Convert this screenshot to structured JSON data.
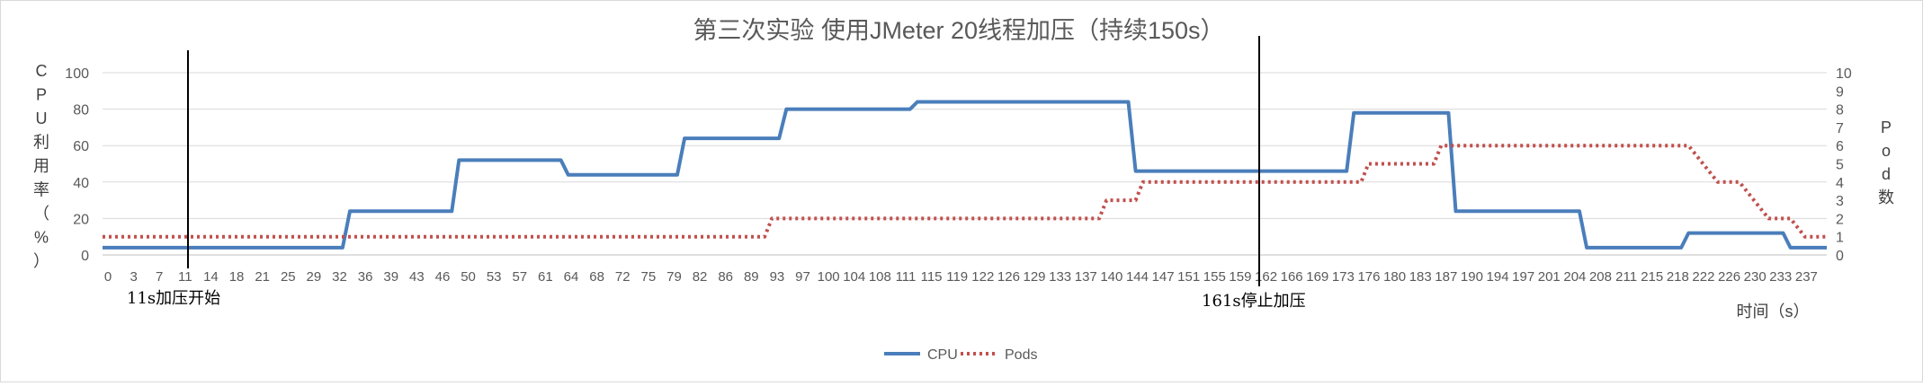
{
  "chart_data": {
    "type": "line",
    "title": "第三次实验 使用JMeter 20线程加压（持续150s）",
    "ylabel_left": "CPU利用率（%）",
    "ylabel_right": "Pod数",
    "xlabel": "时间（s）",
    "ylim_left": [
      0,
      100
    ],
    "yticks_left": [
      "0",
      "20",
      "40",
      "60",
      "80",
      "100"
    ],
    "ylim_right": [
      0,
      10
    ],
    "yticks_right": [
      "0",
      "1",
      "2",
      "3",
      "4",
      "5",
      "6",
      "7",
      "8",
      "9",
      "10"
    ],
    "xlim": [
      0,
      237
    ],
    "xticks": [
      "0",
      "3",
      "7",
      "11",
      "14",
      "18",
      "21",
      "25",
      "29",
      "32",
      "36",
      "39",
      "43",
      "46",
      "50",
      "53",
      "57",
      "61",
      "64",
      "68",
      "72",
      "75",
      "79",
      "82",
      "86",
      "89",
      "93",
      "97",
      "100",
      "104",
      "108",
      "111",
      "115",
      "119",
      "122",
      "126",
      "129",
      "133",
      "137",
      "140",
      "144",
      "147",
      "151",
      "155",
      "159",
      "162",
      "166",
      "169",
      "173",
      "176",
      "180",
      "183",
      "187",
      "190",
      "194",
      "197",
      "201",
      "204",
      "208",
      "211",
      "215",
      "218",
      "222",
      "226",
      "230",
      "233",
      "237"
    ],
    "grid": true,
    "legend": "bottom",
    "series": [
      {
        "name": "CPU",
        "axis": "left",
        "color": "#4a7ebb",
        "style": "solid",
        "points": [
          [
            0,
            4
          ],
          [
            33,
            4
          ],
          [
            34,
            24
          ],
          [
            48,
            24
          ],
          [
            49,
            52
          ],
          [
            63,
            52
          ],
          [
            64,
            44
          ],
          [
            79,
            44
          ],
          [
            80,
            64
          ],
          [
            93,
            64
          ],
          [
            94,
            80
          ],
          [
            111,
            80
          ],
          [
            112,
            84
          ],
          [
            141,
            84
          ],
          [
            142,
            46
          ],
          [
            171,
            46
          ],
          [
            172,
            78
          ],
          [
            185,
            78
          ],
          [
            186,
            24
          ],
          [
            203,
            24
          ],
          [
            204,
            4
          ],
          [
            217,
            4
          ],
          [
            218,
            12
          ],
          [
            231,
            12
          ],
          [
            232,
            4
          ],
          [
            243,
            4
          ]
        ]
      },
      {
        "name": "Pods",
        "axis": "right",
        "color": "#c0504d",
        "style": "dotted",
        "points": [
          [
            0,
            1
          ],
          [
            91,
            1
          ],
          [
            92,
            2
          ],
          [
            137,
            2
          ],
          [
            138,
            3
          ],
          [
            142,
            3
          ],
          [
            143,
            4
          ],
          [
            173,
            4
          ],
          [
            174,
            5
          ],
          [
            183,
            5
          ],
          [
            184,
            6
          ],
          [
            218,
            6
          ],
          [
            222,
            4
          ],
          [
            225,
            4
          ],
          [
            229,
            2
          ],
          [
            232,
            2
          ],
          [
            234,
            1
          ],
          [
            243,
            1
          ]
        ]
      }
    ],
    "annotations": [
      {
        "text": "11s加压开始",
        "x": 11
      },
      {
        "text": "161s停止加压",
        "x": 161
      }
    ]
  }
}
